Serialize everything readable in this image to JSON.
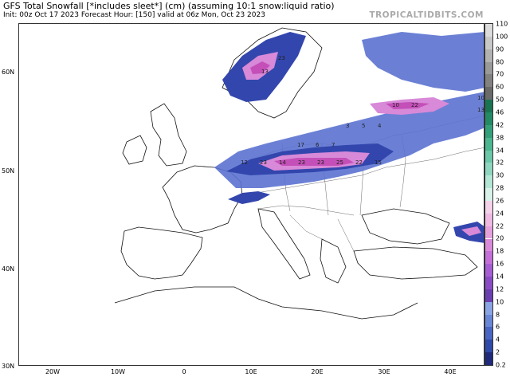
{
  "header": {
    "title": "GFS Total Snowfall [*includes sleet*] (cm) (assuming 10:1 snow:liquid ratio)",
    "subtitle": "Init: 00z Oct 17 2023   Forecast Hour: [150]   valid at 06z Mon, Oct 23 2023",
    "brand": "TROPICALTIDBITS.COM"
  },
  "axes": {
    "lat_labels": [
      "60N",
      "50N",
      "40N",
      "30N"
    ],
    "lon_labels": [
      "20W",
      "10W",
      "0",
      "10E",
      "20E",
      "30E",
      "40E"
    ]
  },
  "colorbar": {
    "levels": [
      "0.2",
      "2",
      "4",
      "6",
      "8",
      "10",
      "12",
      "14",
      "16",
      "18",
      "20",
      "22",
      "24",
      "26",
      "28",
      "30",
      "32",
      "34",
      "38",
      "42",
      "46",
      "50",
      "60",
      "70",
      "80",
      "90",
      "100",
      "110"
    ],
    "colors": [
      "#1f2a7a",
      "#2f4aa8",
      "#4a66c4",
      "#6a86d6",
      "#8aa4e4",
      "#6a3fb0",
      "#8a4cc4",
      "#a65ed2",
      "#c470d8",
      "#d88ad8",
      "#e4a2dc",
      "#eebae2",
      "#f4d2ea",
      "#d8f2ea",
      "#b4e6d6",
      "#8ed6c0",
      "#6cc6a8",
      "#4cb690",
      "#34a07a",
      "#228a66",
      "#1a7454",
      "#6a6a6a",
      "#828282",
      "#9a9a9a",
      "#b2b2b2",
      "#c8c8c8",
      "#dcdcdc"
    ]
  },
  "map": {
    "colors": {
      "light": "#5b72d0",
      "mid": "#3346ad",
      "pink": "#d889d8",
      "magenta": "#c44fb8",
      "border": "#222222",
      "coast": "#111111"
    },
    "value_labels": [
      "22",
      "10",
      "17",
      "23",
      "14",
      "23",
      "23",
      "25",
      "22",
      "15",
      "12",
      "13",
      "6",
      "7",
      "3",
      "5",
      "4",
      "10",
      "13",
      "23"
    ]
  }
}
